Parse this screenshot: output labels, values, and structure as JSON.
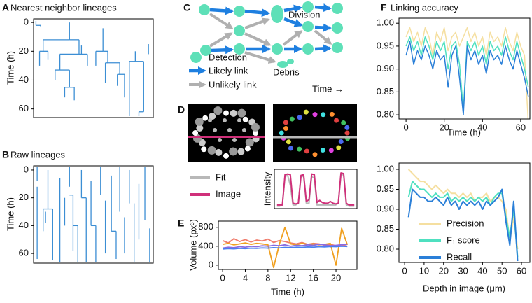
{
  "chart_data": [
    {
      "panel": "A",
      "type": "lineage",
      "title": "Nearest neighbor lineages",
      "ylabel": "Time (h)",
      "ylim": [
        -2.5,
        66
      ],
      "yticks": [
        0,
        20,
        40,
        60
      ],
      "y_inverted": true,
      "xlim": [
        0,
        100
      ],
      "color": "#3b8ed4",
      "branches": [
        {
          "x0": 2,
          "x1": 2,
          "t0": -1,
          "t1": 2
        },
        {
          "x0": 2,
          "x1": 6,
          "t0": 2,
          "t1": 3
        },
        {
          "x0": 30,
          "x1": 30,
          "t0": 0,
          "t1": 12
        },
        {
          "x0": 30,
          "x1": 8,
          "t0": 12,
          "t1": 20
        },
        {
          "x0": 8,
          "x1": 5,
          "t0": 20,
          "t1": 30
        },
        {
          "x0": 8,
          "x1": 12,
          "t0": 20,
          "t1": 26
        },
        {
          "x0": 30,
          "x1": 38,
          "t0": 12,
          "t1": 22
        },
        {
          "x0": 38,
          "x1": 22,
          "t0": 22,
          "t1": 33
        },
        {
          "x0": 38,
          "x1": 45,
          "t0": 22,
          "t1": 30
        },
        {
          "x0": 22,
          "x1": 18,
          "t0": 33,
          "t1": 40
        },
        {
          "x0": 22,
          "x1": 30,
          "t0": 33,
          "t1": 45
        },
        {
          "x0": 30,
          "x1": 26,
          "t0": 45,
          "t1": 52
        },
        {
          "x0": 30,
          "x1": 34,
          "t0": 45,
          "t1": 54
        },
        {
          "x0": 40,
          "x1": 40,
          "t0": 16,
          "t1": 22
        },
        {
          "x0": 58,
          "x1": 58,
          "t0": 4,
          "t1": 20
        },
        {
          "x0": 58,
          "x1": 52,
          "t0": 20,
          "t1": 30
        },
        {
          "x0": 58,
          "x1": 62,
          "t0": 20,
          "t1": 28
        },
        {
          "x0": 62,
          "x1": 60,
          "t0": 28,
          "t1": 42
        },
        {
          "x0": 62,
          "x1": 72,
          "t0": 28,
          "t1": 36
        },
        {
          "x0": 72,
          "x1": 70,
          "t0": 36,
          "t1": 44
        },
        {
          "x0": 72,
          "x1": 76,
          "t0": 36,
          "t1": 52
        },
        {
          "x0": 85,
          "x1": 85,
          "t0": 20,
          "t1": 27
        },
        {
          "x0": 85,
          "x1": 80,
          "t0": 27,
          "t1": 65
        },
        {
          "x0": 85,
          "x1": 92,
          "t0": 27,
          "t1": 62
        },
        {
          "x0": 96,
          "x1": 96,
          "t0": 15,
          "t1": 22
        },
        {
          "x0": 92,
          "x1": 88,
          "t0": 62,
          "t1": 65
        }
      ]
    },
    {
      "panel": "B",
      "type": "lineage",
      "title": "Raw lineages",
      "ylabel": "Time (h)",
      "ylim": [
        -3,
        67
      ],
      "yticks": [
        0,
        20,
        40,
        60
      ],
      "y_inverted": true,
      "xlim": [
        0,
        100
      ],
      "color": "#3b8ed4",
      "branches": [
        {
          "x0": 3,
          "x1": 3,
          "t0": -2,
          "t1": 8
        },
        {
          "x0": 3,
          "x1": 3,
          "t0": 12,
          "t1": 64
        },
        {
          "x0": 10,
          "x1": 10,
          "t0": 30,
          "t1": 38
        },
        {
          "x0": 12,
          "x1": 12,
          "t0": 0,
          "t1": 28
        },
        {
          "x0": 12,
          "x1": 16,
          "t0": 28,
          "t1": 65
        },
        {
          "x0": 12,
          "x1": 8,
          "t0": 28,
          "t1": 44
        },
        {
          "x0": 22,
          "x1": 22,
          "t0": 6,
          "t1": 66
        },
        {
          "x0": 26,
          "x1": 26,
          "t0": 20,
          "t1": 40
        },
        {
          "x0": 30,
          "x1": 30,
          "t0": -2,
          "t1": 12
        },
        {
          "x0": 30,
          "x1": 33,
          "t0": 18,
          "t1": 58
        },
        {
          "x0": 33,
          "x1": 37,
          "t0": 40,
          "t1": 66
        },
        {
          "x0": 40,
          "x1": 40,
          "t0": 0,
          "t1": 20
        },
        {
          "x0": 40,
          "x1": 44,
          "t0": 20,
          "t1": 66
        },
        {
          "x0": 48,
          "x1": 48,
          "t0": 8,
          "t1": 40
        },
        {
          "x0": 48,
          "x1": 52,
          "t0": 40,
          "t1": 66
        },
        {
          "x0": 56,
          "x1": 56,
          "t0": -2,
          "t1": 18
        },
        {
          "x0": 60,
          "x1": 60,
          "t0": 22,
          "t1": 60
        },
        {
          "x0": 65,
          "x1": 65,
          "t0": 4,
          "t1": 44
        },
        {
          "x0": 65,
          "x1": 69,
          "t0": 44,
          "t1": 64
        },
        {
          "x0": 72,
          "x1": 72,
          "t0": -2,
          "t1": 30
        },
        {
          "x0": 76,
          "x1": 76,
          "t0": 34,
          "t1": 60
        },
        {
          "x0": 80,
          "x1": 80,
          "t0": 0,
          "t1": 24
        },
        {
          "x0": 84,
          "x1": 84,
          "t0": 24,
          "t1": 66
        },
        {
          "x0": 88,
          "x1": 88,
          "t0": 10,
          "t1": 50
        },
        {
          "x0": 93,
          "x1": 93,
          "t0": -2,
          "t1": 36
        },
        {
          "x0": 97,
          "x1": 97,
          "t0": 42,
          "t1": 66
        }
      ]
    },
    {
      "panel": "D",
      "type": "line",
      "ylabel": "Intensity",
      "xlim": [
        -1,
        30
      ],
      "ylim": [
        -0.05,
        1.05
      ],
      "x": [
        0,
        1,
        2,
        3,
        4,
        5,
        6,
        7,
        8,
        9,
        10,
        11,
        12,
        13,
        14,
        15,
        16,
        17,
        18,
        19,
        20,
        21,
        22,
        23,
        24,
        25,
        26,
        27,
        28,
        29
      ],
      "series": [
        {
          "name": "Fit",
          "color": "#b8b8b8",
          "values": [
            0.02,
            0.02,
            0.05,
            0.85,
            0.88,
            0.6,
            0.05,
            0.05,
            0.1,
            0.85,
            0.85,
            0.1,
            0.1,
            0.85,
            0.8,
            0.05,
            0.05,
            0.05,
            0.05,
            0.05,
            0.05,
            0.05,
            0.05,
            0.1,
            0.9,
            0.9,
            0.05,
            0.02,
            0.02,
            0.02
          ]
        },
        {
          "name": "Image",
          "color": "#d0307a",
          "values": [
            0.05,
            0.05,
            0.05,
            0.9,
            0.92,
            0.9,
            0.1,
            0.08,
            0.1,
            0.88,
            0.9,
            0.15,
            0.2,
            0.92,
            0.9,
            0.12,
            0.18,
            0.12,
            0.1,
            0.1,
            0.15,
            0.1,
            0.08,
            0.1,
            0.95,
            0.93,
            0.1,
            0.05,
            0.05,
            0.05
          ]
        }
      ]
    },
    {
      "panel": "E",
      "type": "line",
      "ylabel": "Volume (px³)",
      "xlabel": "Time (h)",
      "xlim": [
        -0.75,
        23.7
      ],
      "ylim": [
        -90,
        930
      ],
      "xticks": [
        0,
        4,
        8,
        12,
        16,
        20
      ],
      "yticks": [
        0,
        400,
        800
      ],
      "x": [
        0,
        1,
        2,
        3,
        4,
        5,
        6,
        7,
        8,
        9,
        10,
        11,
        12,
        13,
        14,
        15,
        16,
        17,
        18,
        19,
        20,
        21,
        22
      ],
      "series": [
        {
          "color": "#f07c6c",
          "values": [
            520,
            470,
            560,
            500,
            540,
            490,
            530,
            510,
            550,
            480,
            520,
            500,
            470,
            450,
            480,
            440,
            460,
            450,
            420,
            440,
            410,
            430,
            400
          ]
        },
        {
          "color": "#f0a020",
          "values": [
            440,
            460,
            430,
            450,
            470,
            440,
            460,
            450,
            430,
            -50,
            440,
            800,
            450,
            430,
            460,
            440,
            450,
            430,
            440,
            460,
            0,
            780,
            430
          ]
        },
        {
          "color": "#8a6be0",
          "values": [
            360,
            380,
            370,
            390,
            380,
            400,
            390,
            410,
            400,
            420,
            410,
            430,
            400,
            420,
            410,
            430,
            420,
            440,
            430,
            410,
            420,
            430,
            440
          ]
        },
        {
          "color": "#4a7ff0",
          "values": [
            340,
            350,
            345,
            355,
            350,
            360,
            355,
            365,
            360,
            370,
            365,
            375,
            370,
            380,
            375,
            385,
            380,
            390,
            385,
            395,
            390,
            400,
            395
          ]
        }
      ]
    },
    {
      "panel": "F",
      "type": "line",
      "title": "Linking accuracy",
      "xlabel": "Time (h)",
      "xlim": [
        -3.7,
        64.8
      ],
      "ylim": [
        0.791,
        1.011
      ],
      "xticks": [
        0,
        20,
        40,
        60
      ],
      "yticks": [
        {
          "value": 1,
          "label": "1.00"
        },
        0.95,
        {
          "value": 0.9,
          "label": "0.90"
        },
        0.85,
        {
          "value": 0.8,
          "label": "0.80"
        }
      ],
      "x": [
        0,
        2,
        4,
        6,
        8,
        10,
        12,
        14,
        16,
        18,
        20,
        22,
        24,
        26,
        28,
        30,
        32,
        34,
        36,
        38,
        40,
        42,
        44,
        46,
        48,
        50,
        52,
        54,
        56,
        58,
        60,
        62,
        64
      ],
      "series": [
        {
          "color": "#f5dfa0",
          "values": [
            0.97,
            0.99,
            0.96,
            0.98,
            0.95,
            0.99,
            0.97,
            0.93,
            0.98,
            0.96,
            0.99,
            0.94,
            0.97,
            0.98,
            0.95,
            0.97,
            0.99,
            0.96,
            0.98,
            0.95,
            0.97,
            0.93,
            0.98,
            0.96,
            0.97,
            0.95,
            0.99,
            0.96,
            0.94,
            0.98,
            0.95,
            0.93,
            0.78
          ]
        },
        {
          "color": "#4fe0c0",
          "values": [
            0.95,
            0.97,
            0.94,
            0.96,
            0.93,
            0.97,
            0.95,
            0.92,
            0.96,
            0.94,
            0.96,
            0.9,
            0.95,
            0.96,
            0.91,
            0.81,
            0.96,
            0.94,
            0.96,
            0.93,
            0.95,
            0.91,
            0.96,
            0.94,
            0.95,
            0.93,
            0.97,
            0.94,
            0.92,
            0.96,
            0.93,
            0.9,
            0.86
          ]
        },
        {
          "color": "#2a7fd8",
          "values": [
            0.93,
            0.96,
            0.91,
            0.94,
            0.92,
            0.95,
            0.93,
            0.9,
            0.94,
            0.92,
            0.93,
            0.86,
            0.93,
            0.95,
            0.88,
            0.8,
            0.95,
            0.92,
            0.94,
            0.91,
            0.93,
            0.89,
            0.94,
            0.92,
            0.93,
            0.91,
            0.95,
            0.92,
            0.9,
            0.94,
            0.91,
            0.88,
            0.84
          ]
        }
      ]
    },
    {
      "type": "line",
      "xlabel": "Depth in image (μm)",
      "xlim": [
        -2.9,
        64.3
      ],
      "ylim": [
        0.7667,
        1.0158
      ],
      "xticks": [
        0,
        10,
        20,
        30,
        40,
        50,
        60
      ],
      "yticks": [
        {
          "value": 1,
          "label": "1.00"
        },
        0.95,
        {
          "value": 0.9,
          "label": "0.90"
        },
        0.85,
        {
          "value": 0.8,
          "label": "0.80"
        }
      ],
      "x": [
        2,
        4,
        6,
        8,
        10,
        12,
        14,
        16,
        18,
        20,
        22,
        24,
        26,
        28,
        30,
        32,
        34,
        36,
        38,
        40,
        42,
        44,
        46,
        48,
        50,
        52,
        54,
        56,
        58
      ],
      "series": [
        {
          "name": "Precision",
          "color": "#f5dfa0",
          "values": [
            1.0,
            0.99,
            0.98,
            0.97,
            0.97,
            0.96,
            0.95,
            0.96,
            0.95,
            0.94,
            0.95,
            0.94,
            0.94,
            0.93,
            0.94,
            0.93,
            0.94,
            0.92,
            0.93,
            0.93,
            0.94,
            0.92,
            0.93,
            0.93,
            0.92,
            0.9,
            0.82,
            0.88,
            0.8
          ]
        },
        {
          "name": "F₁ score",
          "color": "#4fe0c0",
          "values": [
            0.93,
            0.97,
            0.96,
            0.95,
            0.95,
            0.94,
            0.93,
            0.94,
            0.93,
            0.93,
            0.94,
            0.92,
            0.93,
            0.92,
            0.93,
            0.92,
            0.93,
            0.92,
            0.93,
            0.92,
            0.93,
            0.91,
            0.93,
            0.94,
            0.94,
            0.88,
            0.83,
            0.9,
            0.78
          ]
        },
        {
          "name": "Recall",
          "color": "#2a7fd8",
          "values": [
            0.88,
            0.95,
            0.94,
            0.93,
            0.93,
            0.92,
            0.92,
            0.93,
            0.92,
            0.91,
            0.93,
            0.91,
            0.92,
            0.9,
            0.92,
            0.91,
            0.92,
            0.91,
            0.92,
            0.9,
            0.92,
            0.91,
            0.92,
            0.93,
            0.95,
            0.87,
            0.81,
            0.92,
            0.77
          ]
        }
      ]
    }
  ],
  "diagram": {
    "panel": "C",
    "labels": {
      "division": "Division",
      "detection": "Detection",
      "likely": "Likely link",
      "unlikely": "Unlikely link",
      "debris": "Debris",
      "time": "Time →"
    }
  }
}
